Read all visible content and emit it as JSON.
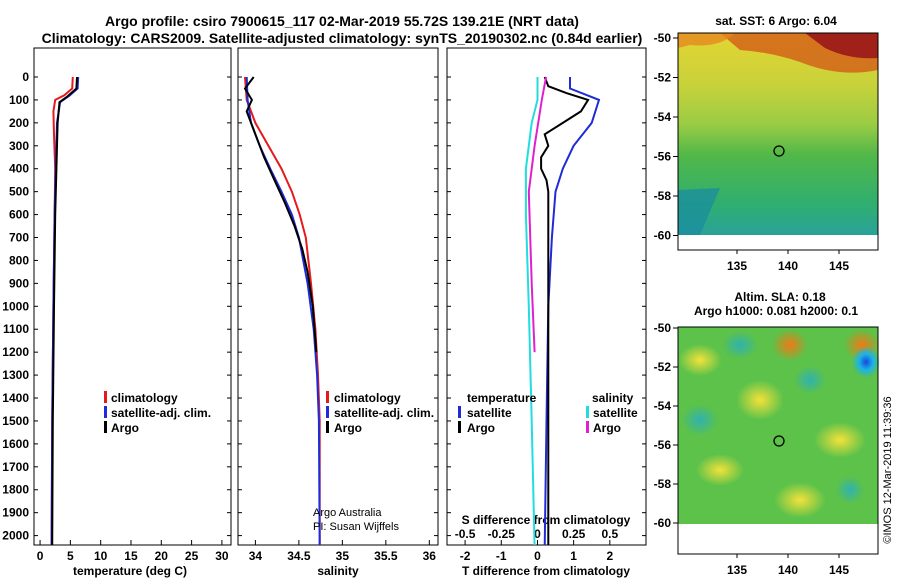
{
  "title_line1": "Argo profile: csiro 7900615_117 02-Mar-2019 55.72S 139.21E (NRT data)",
  "title_line2": "Climatology: CARS2009. Satellite-adjusted climatology: synTS_20190302.nc (0.84d earlier)",
  "colors": {
    "climatology": "#e41a1c",
    "satellite": "#1f2bd6",
    "argo": "#000000",
    "t_sat": "#1f2bd6",
    "t_argo": "#000000",
    "s_sat": "#22dde0",
    "s_argo": "#e020d0"
  },
  "depth_ticks": [
    "0",
    "100",
    "200",
    "300",
    "400",
    "500",
    "600",
    "700",
    "800",
    "900",
    "1000",
    "1100",
    "1200",
    "1300",
    "1400",
    "1500",
    "1600",
    "1700",
    "1800",
    "1900",
    "2000"
  ],
  "legend": {
    "climatology": "climatology",
    "satellite": "satellite-adj. clim.",
    "argo": "Argo"
  },
  "legend_diff": {
    "temperature": "temperature",
    "salinity": "salinity",
    "satellite": "satellite",
    "argo": "Argo"
  },
  "credit": {
    "line1": "Argo Australia",
    "line2": "PI: Susan Wijffels"
  },
  "watermark": "©IMOS 12-Mar-2019 11:39:36",
  "map_sst": {
    "title": "sat. SST: 6 Argo: 6.04",
    "yticks": [
      "-50",
      "-52",
      "-54",
      "-56",
      "-58",
      "-60"
    ],
    "xticks": [
      "135",
      "140",
      "145"
    ]
  },
  "map_sla": {
    "title1": "Altim. SLA: 0.18",
    "title2": "Argo h1000: 0.081 h2000: 0.1",
    "yticks": [
      "-50",
      "-52",
      "-54",
      "-56",
      "-58",
      "-60"
    ],
    "xticks": [
      "135",
      "140",
      "145"
    ]
  },
  "chart_data": [
    {
      "type": "line",
      "xlabel": "temperature (deg C)",
      "xticks": [
        "0",
        "5",
        "10",
        "15",
        "20",
        "25",
        "30"
      ],
      "xlim": [
        -1,
        31.5
      ],
      "ylim": [
        2080,
        0
      ],
      "series": [
        {
          "name": "climatology",
          "points": [
            [
              5.4,
              0
            ],
            [
              5.3,
              50
            ],
            [
              4.0,
              80
            ],
            [
              2.5,
              100
            ],
            [
              2.2,
              150
            ],
            [
              2.3,
              250
            ],
            [
              2.5,
              400
            ],
            [
              2.4,
              600
            ],
            [
              2.2,
              1000
            ],
            [
              2.0,
              1500
            ],
            [
              1.9,
              2050
            ]
          ]
        },
        {
          "name": "satellite-adj. clim.",
          "points": [
            [
              6.3,
              0
            ],
            [
              6.2,
              50
            ],
            [
              4.9,
              80
            ],
            [
              3.3,
              110
            ],
            [
              2.8,
              200
            ],
            [
              2.6,
              400
            ],
            [
              2.4,
              600
            ],
            [
              2.2,
              1000
            ],
            [
              2.0,
              1500
            ],
            [
              1.9,
              2050
            ]
          ]
        },
        {
          "name": "Argo",
          "points": [
            [
              6.1,
              0
            ],
            [
              6.0,
              50
            ],
            [
              4.5,
              85
            ],
            [
              3.2,
              110
            ],
            [
              2.9,
              200
            ],
            [
              2.7,
              400
            ],
            [
              2.5,
              600
            ],
            [
              2.3,
              1000
            ],
            [
              2.1,
              1500
            ],
            [
              2.0,
              2050
            ]
          ]
        }
      ]
    },
    {
      "type": "line",
      "xlabel": "salinity",
      "xticks": [
        "34",
        "34.5",
        "35",
        "35.5",
        "36"
      ],
      "xlim": [
        33.8,
        36.1
      ],
      "ylim": [
        2080,
        0
      ],
      "series": [
        {
          "name": "climatology",
          "points": [
            [
              33.88,
              0
            ],
            [
              33.9,
              100
            ],
            [
              34.0,
              200
            ],
            [
              34.15,
              300
            ],
            [
              34.3,
              400
            ],
            [
              34.42,
              500
            ],
            [
              34.51,
              600
            ],
            [
              34.58,
              700
            ],
            [
              34.64,
              900
            ],
            [
              34.69,
              1100
            ],
            [
              34.72,
              1300
            ],
            [
              34.74,
              1500
            ],
            [
              34.74,
              2050
            ]
          ]
        },
        {
          "name": "satellite-adj. clim.",
          "points": [
            [
              33.9,
              0
            ],
            [
              33.91,
              100
            ],
            [
              33.95,
              200
            ],
            [
              34.05,
              300
            ],
            [
              34.17,
              400
            ],
            [
              34.3,
              500
            ],
            [
              34.42,
              600
            ],
            [
              34.5,
              700
            ],
            [
              34.6,
              900
            ],
            [
              34.67,
              1100
            ],
            [
              34.71,
              1300
            ],
            [
              34.73,
              1500
            ],
            [
              34.74,
              2050
            ]
          ]
        },
        {
          "name": "Argo",
          "points": [
            [
              33.98,
              0
            ],
            [
              33.88,
              50
            ],
            [
              33.96,
              100
            ],
            [
              33.9,
              150
            ],
            [
              34.0,
              250
            ],
            [
              34.1,
              350
            ],
            [
              34.22,
              450
            ],
            [
              34.34,
              550
            ],
            [
              34.45,
              650
            ],
            [
              34.54,
              750
            ],
            [
              34.6,
              850
            ],
            [
              34.66,
              1000
            ],
            [
              34.7,
              1200
            ]
          ]
        }
      ]
    },
    {
      "type": "line",
      "xlabel": "T difference from climatology",
      "xticks": [
        "-2",
        "-1",
        "0",
        "1",
        "2"
      ],
      "xlim": [
        -2.5,
        3.0
      ],
      "xlabel2": "S difference from climatology",
      "xticks2": [
        "-0.5",
        "-0.25",
        "0",
        "0.25",
        "0.5"
      ],
      "xlim2": [
        -0.625,
        0.75
      ],
      "ylim": [
        2080,
        0
      ],
      "series": [
        {
          "name": "satellite (temperature)",
          "points": [
            [
              0.9,
              0
            ],
            [
              0.9,
              50
            ],
            [
              1.7,
              100
            ],
            [
              1.5,
              200
            ],
            [
              1.0,
              300
            ],
            [
              0.7,
              400
            ],
            [
              0.5,
              500
            ],
            [
              0.4,
              700
            ],
            [
              0.3,
              1000
            ],
            [
              0.25,
              1500
            ],
            [
              0.2,
              2050
            ]
          ]
        },
        {
          "name": "Argo (temperature)",
          "points": [
            [
              0.2,
              0
            ],
            [
              0.3,
              40
            ],
            [
              0.8,
              70
            ],
            [
              1.4,
              100
            ],
            [
              1.2,
              150
            ],
            [
              0.7,
              200
            ],
            [
              0.2,
              250
            ],
            [
              0.3,
              300
            ],
            [
              0.1,
              350
            ],
            [
              0.1,
              400
            ],
            [
              0.25,
              450
            ],
            [
              0.3,
              500
            ],
            [
              0.3,
              700
            ],
            [
              0.3,
              1000
            ],
            [
              0.3,
              1500
            ],
            [
              0.3,
              2050
            ]
          ]
        },
        {
          "name": "satellite (salinity)",
          "points": [
            [
              0.0,
              0
            ],
            [
              0.0,
              100
            ],
            [
              -0.04,
              200
            ],
            [
              -0.08,
              400
            ],
            [
              -0.08,
              600
            ],
            [
              -0.06,
              1000
            ],
            [
              -0.04,
              1500
            ],
            [
              -0.02,
              2050
            ]
          ]
        },
        {
          "name": "Argo (salinity)",
          "points": [
            [
              0.06,
              0
            ],
            [
              0.03,
              100
            ],
            [
              -0.02,
              300
            ],
            [
              -0.06,
              500
            ],
            [
              -0.04,
              900
            ],
            [
              -0.02,
              1200
            ]
          ]
        }
      ]
    }
  ]
}
